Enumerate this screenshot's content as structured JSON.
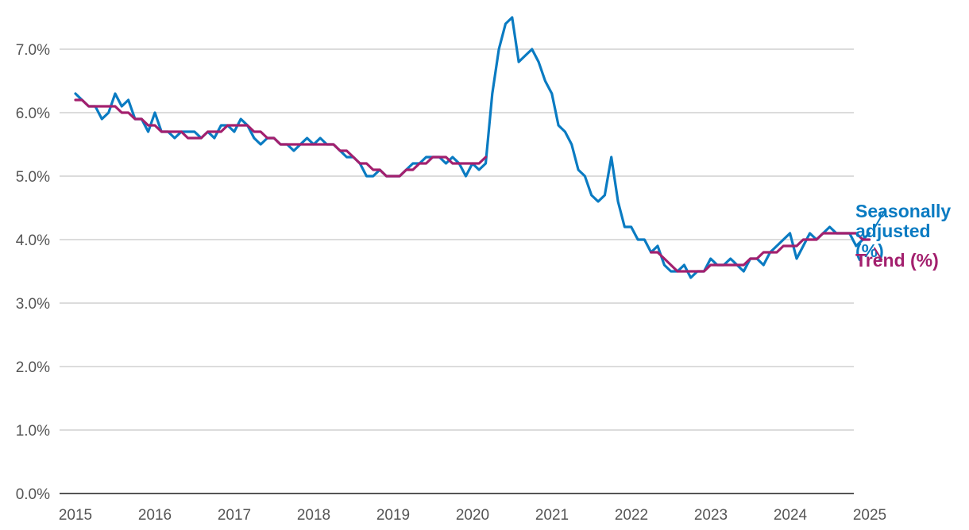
{
  "colors": {
    "sa": "#0a7bc2",
    "trend": "#a3206e",
    "grid": "#d0d0d0",
    "axis": "#555555"
  },
  "chart_data": {
    "type": "line",
    "title": "",
    "xlabel": "",
    "ylabel": "",
    "ylim": [
      0,
      7.5
    ],
    "xlim": [
      2015,
      2025
    ],
    "yticks": [
      0,
      1,
      2,
      3,
      4,
      5,
      6,
      7
    ],
    "ytick_labels": [
      "0.0%",
      "1.0%",
      "2.0%",
      "3.0%",
      "4.0%",
      "5.0%",
      "6.0%",
      "7.0%"
    ],
    "xtick_labels": [
      "2015",
      "2016",
      "2017",
      "2018",
      "2019",
      "2020",
      "2021",
      "2022",
      "2023",
      "2024",
      "2025"
    ],
    "grid": true,
    "series": [
      {
        "name": "Seasonally adjusted (%)",
        "label_lines": [
          "Seasonally",
          "adjusted",
          "(%)"
        ],
        "color": "#0a7bc2",
        "x_start": 2015.0,
        "x_step": 0.0833,
        "values": [
          6.3,
          6.2,
          6.1,
          6.1,
          5.9,
          6.0,
          6.3,
          6.1,
          6.2,
          5.9,
          5.9,
          5.7,
          6.0,
          5.7,
          5.7,
          5.6,
          5.7,
          5.7,
          5.7,
          5.6,
          5.7,
          5.6,
          5.8,
          5.8,
          5.7,
          5.9,
          5.8,
          5.6,
          5.5,
          5.6,
          5.6,
          5.5,
          5.5,
          5.4,
          5.5,
          5.6,
          5.5,
          5.6,
          5.5,
          5.5,
          5.4,
          5.3,
          5.3,
          5.2,
          5.0,
          5.0,
          5.1,
          5.0,
          5.0,
          5.0,
          5.1,
          5.2,
          5.2,
          5.3,
          5.3,
          5.3,
          5.2,
          5.3,
          5.2,
          5.0,
          5.2,
          5.1,
          5.2,
          6.3,
          7.0,
          7.4,
          7.5,
          6.8,
          6.9,
          7.0,
          6.8,
          6.5,
          6.3,
          5.8,
          5.7,
          5.5,
          5.1,
          5.0,
          4.7,
          4.6,
          4.7,
          5.3,
          4.6,
          4.2,
          4.2,
          4.0,
          4.0,
          3.8,
          3.9,
          3.6,
          3.5,
          3.5,
          3.6,
          3.4,
          3.5,
          3.5,
          3.7,
          3.6,
          3.6,
          3.7,
          3.6,
          3.5,
          3.7,
          3.7,
          3.6,
          3.8,
          3.9,
          4.0,
          4.1,
          3.7,
          3.9,
          4.1,
          4.0,
          4.1,
          4.2,
          4.1,
          4.1,
          4.1,
          3.9,
          4.0,
          4.1
        ]
      },
      {
        "name": "Trend (%)",
        "label_lines": [
          "Trend (%)"
        ],
        "color": "#a3206e",
        "x_start": 2015.0,
        "x_step": 0.0833,
        "values": [
          6.2,
          6.2,
          6.1,
          6.1,
          6.1,
          6.1,
          6.1,
          6.0,
          6.0,
          5.9,
          5.9,
          5.8,
          5.8,
          5.7,
          5.7,
          5.7,
          5.7,
          5.6,
          5.6,
          5.6,
          5.7,
          5.7,
          5.7,
          5.8,
          5.8,
          5.8,
          5.8,
          5.7,
          5.7,
          5.6,
          5.6,
          5.5,
          5.5,
          5.5,
          5.5,
          5.5,
          5.5,
          5.5,
          5.5,
          5.5,
          5.4,
          5.4,
          5.3,
          5.2,
          5.2,
          5.1,
          5.1,
          5.0,
          5.0,
          5.0,
          5.1,
          5.1,
          5.2,
          5.2,
          5.3,
          5.3,
          5.3,
          5.2,
          5.2,
          5.2,
          5.2,
          5.2,
          5.3,
          null,
          null,
          null,
          null,
          null,
          null,
          null,
          null,
          null,
          null,
          null,
          null,
          null,
          null,
          null,
          null,
          null,
          null,
          null,
          null,
          null,
          null,
          null,
          null,
          3.8,
          3.8,
          3.7,
          3.6,
          3.5,
          3.5,
          3.5,
          3.5,
          3.5,
          3.6,
          3.6,
          3.6,
          3.6,
          3.6,
          3.6,
          3.7,
          3.7,
          3.8,
          3.8,
          3.8,
          3.9,
          3.9,
          3.9,
          4.0,
          4.0,
          4.0,
          4.1,
          4.1,
          4.1,
          4.1,
          4.1,
          4.1,
          4.0,
          4.0
        ]
      }
    ]
  }
}
